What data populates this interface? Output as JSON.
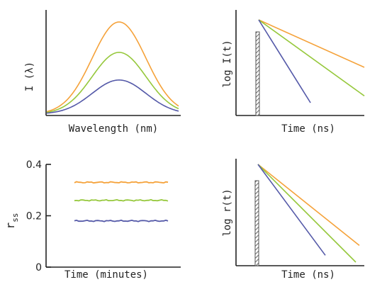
{
  "colors": {
    "orange": "#f5a23a",
    "green": "#96c83c",
    "blue": "#5459a8",
    "axis": "#222222",
    "pulse": "#555555"
  },
  "chart_data": [
    {
      "id": "spectra",
      "type": "line",
      "xlabel": "Wavelength (nm)",
      "ylabel": "I (λ)",
      "series": [
        {
          "color": "orange",
          "relative_peak": 1.0
        },
        {
          "color": "green",
          "relative_peak": 0.67
        },
        {
          "color": "blue",
          "relative_peak": 0.37
        }
      ]
    },
    {
      "id": "intensity-decay",
      "type": "line",
      "xlabel": "Time (ns)",
      "ylabel": "log I(t)",
      "pulse": true,
      "series": [
        {
          "color": "orange",
          "relative_slope": 0.45
        },
        {
          "color": "green",
          "relative_slope": 0.72
        },
        {
          "color": "blue",
          "relative_slope": 1.6
        }
      ]
    },
    {
      "id": "steady-state-anisotropy",
      "type": "line",
      "xlabel": "Time (minutes)",
      "ylabel": "r",
      "ylabel_sub": "ss",
      "yticks": [
        "0.4",
        "0.2",
        "0"
      ],
      "ylim": [
        0,
        0.4
      ],
      "series": [
        {
          "color": "orange",
          "values": [
            0.33,
            0.33
          ]
        },
        {
          "color": "green",
          "values": [
            0.26,
            0.26
          ]
        },
        {
          "color": "blue",
          "values": [
            0.18,
            0.18
          ]
        }
      ]
    },
    {
      "id": "anisotropy-decay",
      "type": "line",
      "xlabel": "Time (ns)",
      "ylabel": "log r(t)",
      "pulse": true,
      "series": [
        {
          "color": "orange",
          "relative_slope": 0.8
        },
        {
          "color": "green",
          "relative_slope": 1.0
        },
        {
          "color": "blue",
          "relative_slope": 1.35
        }
      ]
    }
  ]
}
